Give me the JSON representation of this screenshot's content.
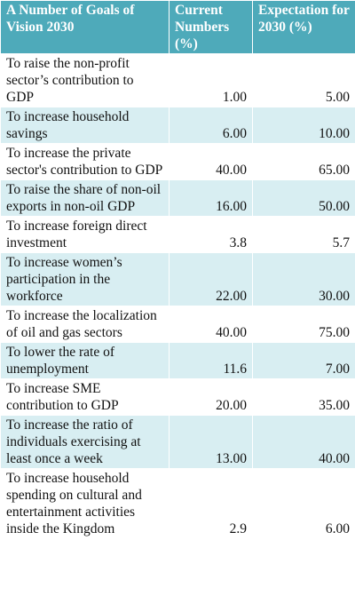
{
  "table": {
    "header": [
      "A Number of Goals of Vision 2030",
      "Current Numbers (%)",
      "Expectation for 2030 (%)"
    ],
    "rows": [
      [
        "To raise the non-profit sector’s contribution to GDP",
        "1.00",
        "5.00"
      ],
      [
        "To increase household savings",
        "6.00",
        "10.00"
      ],
      [
        "To increase the private sector's contribution to GDP",
        "40.00",
        "65.00"
      ],
      [
        "To raise the share of non-oil exports in non-oil GDP",
        "16.00",
        "50.00"
      ],
      [
        "To increase foreign direct investment",
        "3.8",
        "5.7"
      ],
      [
        "To increase women’s participation in the workforce",
        "22.00",
        "30.00"
      ],
      [
        "To increase the localization of oil and gas sectors",
        "40.00",
        "75.00"
      ],
      [
        "To lower the rate of unemployment",
        "11.6",
        "7.00"
      ],
      [
        "To increase SME contribution to GDP",
        "20.00",
        "35.00"
      ],
      [
        "To increase the ratio of individuals exercising at least once a week",
        "13.00",
        "40.00"
      ],
      [
        "To increase household spending on cultural and entertainment activities inside the Kingdom",
        "2.9",
        "6.00"
      ]
    ]
  }
}
